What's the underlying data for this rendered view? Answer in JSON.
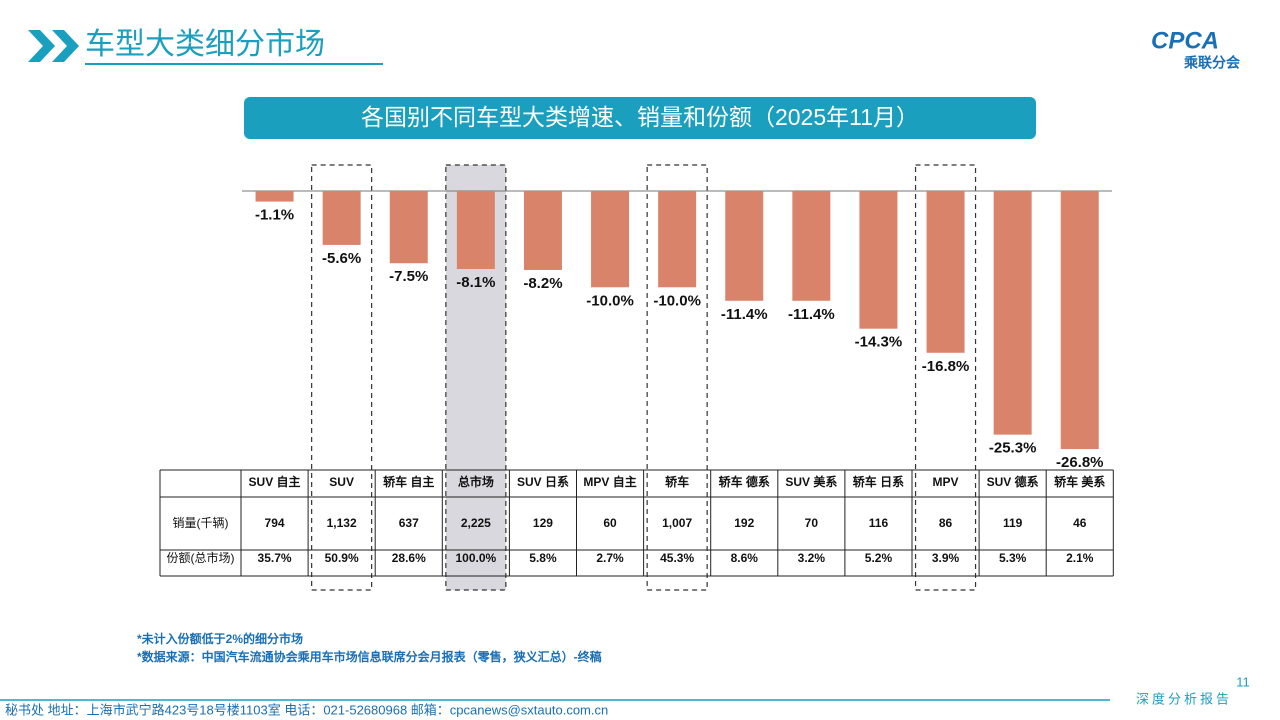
{
  "header": {
    "title": "车型大类细分市场",
    "logo": "CPCA",
    "logo_sub": "乘联分会"
  },
  "chart_data": {
    "type": "bar",
    "title": "各国别不同车型大类增速、销量和份额（2025年11月）",
    "categories": [
      "SUV 自主",
      "SUV",
      "轿车 自主",
      "总市场",
      "SUV 日系",
      "MPV 自主",
      "轿车",
      "轿车 德系",
      "SUV 美系",
      "轿车 日系",
      "MPV",
      "SUV 德系",
      "轿车 美系"
    ],
    "values": [
      -1.1,
      -5.6,
      -7.5,
      -8.1,
      -8.2,
      -10.0,
      -10.0,
      -11.4,
      -11.4,
      -14.3,
      -16.8,
      -25.3,
      -26.8
    ],
    "value_labels": [
      "-1.1%",
      "-5.6%",
      "-7.5%",
      "-8.1%",
      "-8.2%",
      "-10.0%",
      "-10.0%",
      "-11.4%",
      "-11.4%",
      "-14.3%",
      "-16.8%",
      "-25.3%",
      "-26.8%"
    ],
    "color": "#d9846a"
  },
  "table": {
    "row_headers": [
      "销量(千辆)",
      "份额(总市场)"
    ],
    "rows": [
      [
        "794",
        "1,132",
        "637",
        "2,225",
        "129",
        "60",
        "1,007",
        "192",
        "70",
        "116",
        "86",
        "119",
        "46"
      ],
      [
        "35.7%",
        "50.9%",
        "28.6%",
        "100.0%",
        "5.8%",
        "2.7%",
        "45.3%",
        "8.6%",
        "3.2%",
        "5.2%",
        "3.9%",
        "5.3%",
        "2.1%"
      ]
    ]
  },
  "notes": [
    "*未计入份额低于2%的细分市场",
    "*数据来源：中国汽车流通协会乘用车市场信息联席分会月报表（零售，狭义汇总）-终稿"
  ],
  "footer": {
    "address": "秘书处   地址：上海市武宁路423号18号楼1103室  电话：021-52680968   邮箱：cpcanews@sxtauto.com.cn",
    "tag": "深度分析报告",
    "page": "11"
  }
}
